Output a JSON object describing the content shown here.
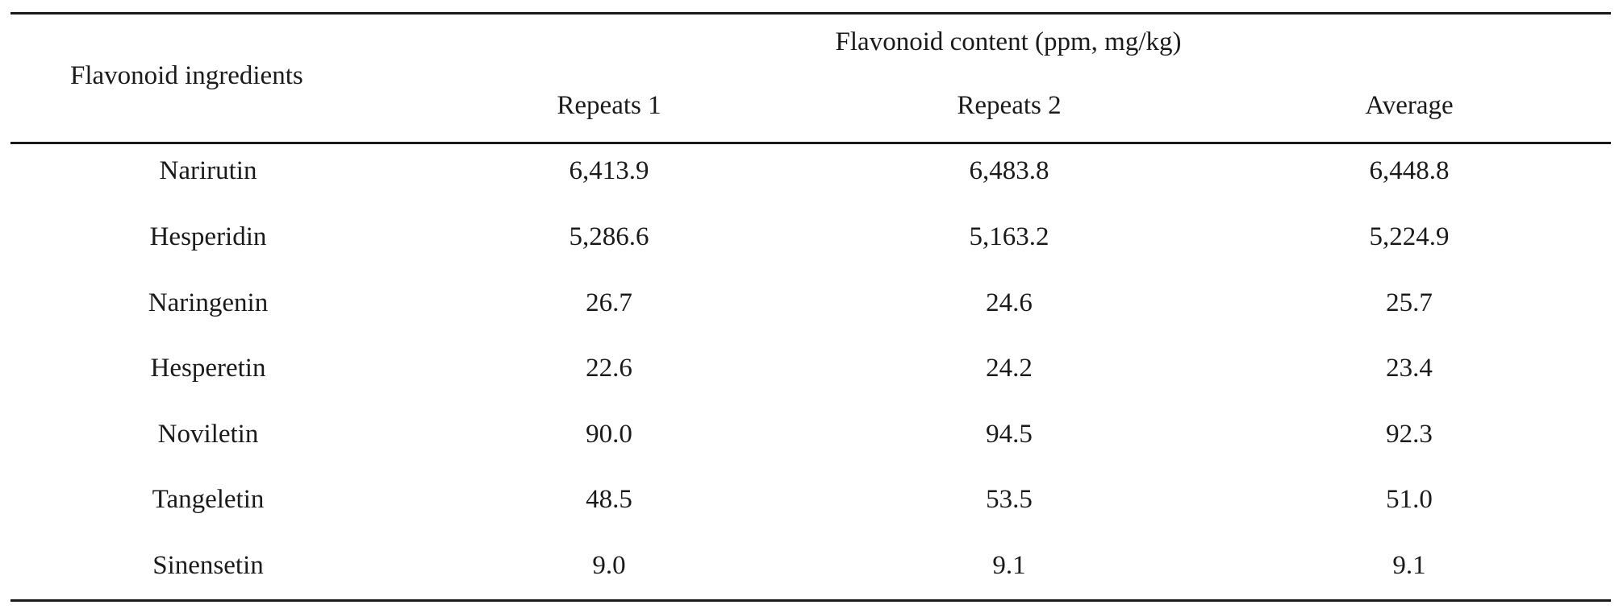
{
  "table": {
    "row_header_label": "Flavonoid ingredients",
    "group_header": "Flavonoid content (ppm, mg/kg)",
    "columns": [
      "Repeats 1",
      "Repeats 2",
      "Average"
    ],
    "rows": [
      {
        "name": "Narirutin",
        "values": [
          "6,413.9",
          "6,483.8",
          "6,448.8"
        ]
      },
      {
        "name": "Hesperidin",
        "values": [
          "5,286.6",
          "5,163.2",
          "5,224.9"
        ]
      },
      {
        "name": "Naringenin",
        "values": [
          "26.7",
          "24.6",
          "25.7"
        ]
      },
      {
        "name": "Hesperetin",
        "values": [
          "22.6",
          "24.2",
          "23.4"
        ]
      },
      {
        "name": "Noviletin",
        "values": [
          "90.0",
          "94.5",
          "92.3"
        ]
      },
      {
        "name": "Tangeletin",
        "values": [
          "48.5",
          "53.5",
          "51.0"
        ]
      },
      {
        "name": "Sinensetin",
        "values": [
          "9.0",
          "9.1",
          "9.1"
        ]
      }
    ]
  }
}
